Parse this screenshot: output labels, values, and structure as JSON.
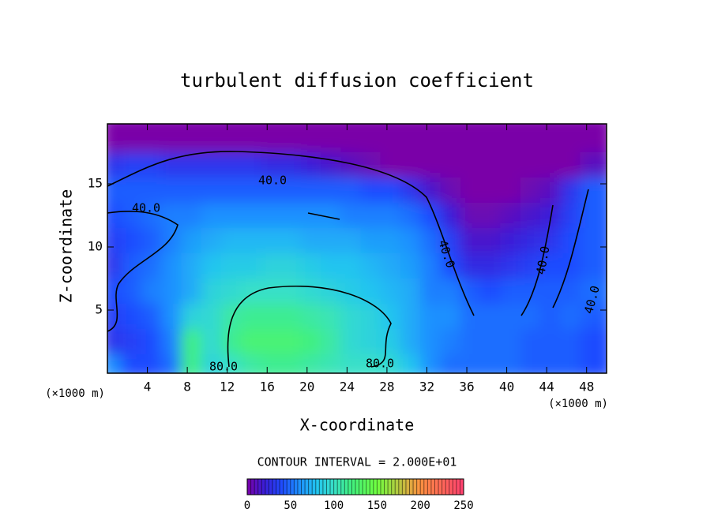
{
  "chart_data": {
    "type": "heatmap",
    "title": "turbulent diffusion coefficient",
    "xlabel": "X-coordinate",
    "ylabel": "Z-coordinate",
    "x_unit": "(×1000 m)",
    "y_unit": "(×1000 m)",
    "xlim": [
      0,
      50
    ],
    "ylim": [
      0,
      19.75
    ],
    "xticks": [
      4,
      8,
      12,
      16,
      20,
      24,
      28,
      32,
      36,
      40,
      44,
      48
    ],
    "yticks": [
      5,
      10,
      15
    ],
    "x": [
      1,
      3,
      5,
      7,
      9,
      11,
      13,
      15,
      17,
      19,
      21,
      23,
      25,
      27,
      29,
      31,
      33,
      35,
      37,
      39,
      41,
      43,
      45,
      47,
      49
    ],
    "z": [
      1,
      3,
      5,
      7,
      9,
      11,
      13,
      15,
      17,
      19
    ],
    "values": [
      [
        60,
        40,
        40,
        50,
        120,
        90,
        100,
        110,
        115,
        115,
        110,
        105,
        100,
        100,
        95,
        80,
        60,
        50,
        50,
        50,
        50,
        45,
        45,
        45,
        40
      ],
      [
        30,
        35,
        40,
        55,
        120,
        95,
        115,
        125,
        125,
        125,
        120,
        110,
        95,
        90,
        85,
        70,
        60,
        55,
        50,
        50,
        50,
        45,
        45,
        45,
        40
      ],
      [
        35,
        40,
        45,
        60,
        90,
        95,
        110,
        115,
        115,
        115,
        110,
        105,
        95,
        90,
        80,
        70,
        60,
        60,
        50,
        50,
        50,
        50,
        45,
        50,
        45
      ],
      [
        40,
        45,
        55,
        60,
        70,
        90,
        95,
        100,
        100,
        100,
        95,
        90,
        85,
        80,
        75,
        70,
        55,
        55,
        45,
        40,
        45,
        45,
        45,
        45,
        50
      ],
      [
        30,
        45,
        50,
        60,
        70,
        80,
        85,
        85,
        90,
        90,
        85,
        80,
        80,
        75,
        70,
        65,
        55,
        40,
        25,
        25,
        30,
        35,
        40,
        40,
        45
      ],
      [
        35,
        40,
        45,
        55,
        65,
        70,
        75,
        75,
        75,
        75,
        70,
        70,
        70,
        65,
        65,
        60,
        50,
        35,
        15,
        15,
        20,
        25,
        30,
        40,
        45
      ],
      [
        40,
        45,
        50,
        55,
        55,
        60,
        60,
        60,
        60,
        60,
        60,
        60,
        55,
        55,
        55,
        50,
        40,
        20,
        5,
        5,
        10,
        15,
        20,
        35,
        45
      ],
      [
        45,
        45,
        45,
        45,
        45,
        45,
        45,
        45,
        45,
        45,
        45,
        45,
        45,
        40,
        40,
        30,
        15,
        5,
        0,
        0,
        0,
        5,
        10,
        30,
        45
      ],
      [
        30,
        35,
        35,
        30,
        30,
        30,
        30,
        30,
        25,
        25,
        20,
        15,
        10,
        5,
        0,
        0,
        0,
        0,
        0,
        0,
        0,
        0,
        0,
        0,
        10
      ],
      [
        0,
        0,
        0,
        0,
        0,
        0,
        0,
        0,
        0,
        0,
        0,
        0,
        0,
        0,
        0,
        0,
        0,
        0,
        0,
        0,
        0,
        0,
        0,
        0,
        0
      ]
    ],
    "colorscale": [
      [
        0,
        "#7a00a8"
      ],
      [
        20,
        "#3a1ed8"
      ],
      [
        40,
        "#1f4cff"
      ],
      [
        60,
        "#1e90ff"
      ],
      [
        80,
        "#22c4f0"
      ],
      [
        100,
        "#38e0c8"
      ],
      [
        120,
        "#40f080"
      ],
      [
        150,
        "#70ff40"
      ],
      [
        200,
        "#ff9040"
      ],
      [
        250,
        "#ff4070"
      ]
    ],
    "contour_note": "CONTOUR INTERVAL = 2.000E+01",
    "contour_labels": [
      "40.0",
      "40.0",
      "80.0",
      "80.0",
      "40.0",
      "40.0",
      "40.0"
    ],
    "colorbar_ticks": [
      0,
      50,
      100,
      150,
      200,
      250
    ]
  }
}
